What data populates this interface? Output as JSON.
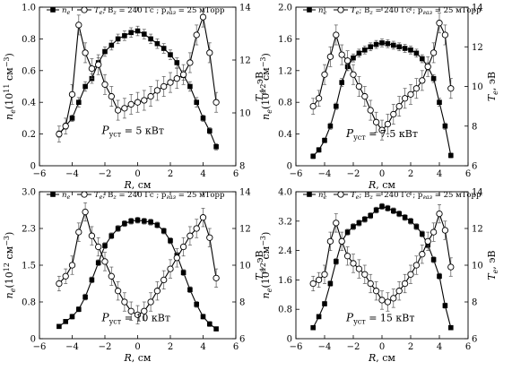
{
  "legend": {
    "series_ne": "n",
    "series_ne_sub": "e",
    "series_te": "T",
    "series_te_sub": "e",
    "conditions": "; B",
    "conditions_sub": "z",
    "conditions_rest": " = 240 Гс ; p",
    "pressure_sub": "газ",
    "pressure_rest": " = 25 мТорр"
  },
  "chart_data": [
    {
      "type": "line",
      "xlabel": "R, см",
      "ylabel_left": "n_e(10^11 см^-3)",
      "ylabel_right": "T_e, эВ",
      "xlim": [
        -6,
        6
      ],
      "ylim_left": [
        0,
        1.0
      ],
      "ylim_right": [
        6,
        14
      ],
      "xticks": [
        "−6",
        "−4",
        "−2",
        "0",
        "2",
        "4",
        "6"
      ],
      "yticks_left": [
        "0",
        "0.2",
        "0.4",
        "0.6",
        "0.8",
        "1.0"
      ],
      "yticks_right": [
        "8",
        "10",
        "12",
        "14"
      ],
      "power_label": "= 5 кВт",
      "x": [
        -4.8,
        -4.4,
        -4.0,
        -3.6,
        -3.2,
        -2.8,
        -2.4,
        -2.0,
        -1.6,
        -1.2,
        -0.8,
        -0.4,
        0.0,
        0.4,
        0.8,
        1.2,
        1.6,
        2.0,
        2.4,
        2.8,
        3.2,
        3.6,
        4.0,
        4.4,
        4.8
      ],
      "series": [
        {
          "name": "n_e",
          "axis": "left",
          "marker": "filled",
          "values": [
            0.2,
            0.25,
            0.3,
            0.4,
            0.5,
            0.55,
            0.65,
            0.72,
            0.76,
            0.8,
            0.82,
            0.84,
            0.85,
            0.83,
            0.8,
            0.77,
            0.74,
            0.7,
            0.65,
            0.57,
            0.5,
            0.4,
            0.3,
            0.22,
            0.12
          ],
          "errors": [
            0.02,
            0.02,
            0.02,
            0.03,
            0.03,
            0.03,
            0.03,
            0.03,
            0.03,
            0.03,
            0.03,
            0.03,
            0.03,
            0.03,
            0.03,
            0.03,
            0.03,
            0.03,
            0.03,
            0.03,
            0.03,
            0.03,
            0.02,
            0.02,
            0.02
          ]
        },
        {
          "name": "T_e",
          "axis": "right",
          "marker": "open",
          "values": [
            7.6,
            8.0,
            9.6,
            13.1,
            11.7,
            10.9,
            11.1,
            10.1,
            9.5,
            8.8,
            8.9,
            9.1,
            9.2,
            9.3,
            9.5,
            9.8,
            10.0,
            10.2,
            10.4,
            10.6,
            11.2,
            12.6,
            13.5,
            11.7,
            9.2
          ],
          "errors": [
            0.4,
            0.4,
            0.5,
            0.5,
            0.5,
            0.5,
            0.5,
            0.5,
            0.5,
            0.5,
            0.5,
            0.5,
            0.5,
            0.5,
            0.5,
            0.5,
            0.5,
            0.5,
            0.5,
            0.5,
            0.5,
            0.5,
            0.5,
            0.5,
            0.5
          ]
        }
      ]
    },
    {
      "type": "line",
      "xlabel": "R, см",
      "ylabel_left": "n_e(10^12 см^-3)",
      "ylabel_right": "T_e, эВ",
      "xlim": [
        -6,
        6
      ],
      "ylim_left": [
        0,
        2.0
      ],
      "ylim_right": [
        6,
        14
      ],
      "xticks": [
        "−6",
        "−4",
        "−2",
        "0",
        "2",
        "4",
        "6"
      ],
      "yticks_left": [
        "0",
        "0.4",
        "0.8",
        "1.2",
        "1.6",
        "2.0"
      ],
      "yticks_right": [
        "6",
        "8",
        "10",
        "12",
        "14"
      ],
      "power_label": "= 7.5 кВт",
      "x": [
        -4.8,
        -4.4,
        -4.0,
        -3.6,
        -3.2,
        -2.8,
        -2.4,
        -2.0,
        -1.6,
        -1.2,
        -0.8,
        -0.4,
        0.0,
        0.4,
        0.8,
        1.2,
        1.6,
        2.0,
        2.4,
        2.8,
        3.2,
        3.6,
        4.0,
        4.4,
        4.8
      ],
      "series": [
        {
          "name": "n_e",
          "axis": "left",
          "marker": "filled",
          "values": [
            0.12,
            0.2,
            0.32,
            0.5,
            0.75,
            1.05,
            1.25,
            1.36,
            1.42,
            1.46,
            1.5,
            1.53,
            1.55,
            1.54,
            1.52,
            1.5,
            1.48,
            1.46,
            1.42,
            1.35,
            1.25,
            1.1,
            0.8,
            0.5,
            0.13
          ],
          "errors": [
            0.03,
            0.03,
            0.03,
            0.04,
            0.04,
            0.05,
            0.05,
            0.05,
            0.05,
            0.05,
            0.05,
            0.05,
            0.05,
            0.05,
            0.05,
            0.05,
            0.05,
            0.05,
            0.05,
            0.05,
            0.05,
            0.05,
            0.05,
            0.04,
            0.03
          ]
        },
        {
          "name": "T_e",
          "axis": "right",
          "marker": "open",
          "values": [
            9.0,
            9.4,
            10.6,
            11.5,
            12.6,
            11.6,
            11.3,
            10.6,
            10.0,
            9.5,
            8.8,
            8.2,
            7.8,
            8.1,
            8.6,
            9.0,
            9.4,
            9.6,
            9.9,
            10.3,
            11.0,
            11.7,
            13.2,
            12.6,
            9.9
          ],
          "errors": [
            0.4,
            0.4,
            0.5,
            0.5,
            0.5,
            0.5,
            0.5,
            0.5,
            0.5,
            0.5,
            0.5,
            0.5,
            0.5,
            0.5,
            0.5,
            0.5,
            0.5,
            0.5,
            0.5,
            0.5,
            0.5,
            0.5,
            0.5,
            0.5,
            0.5
          ]
        }
      ]
    },
    {
      "type": "line",
      "xlabel": "R, см",
      "ylabel_left": "n_e(10^12 см^-3)",
      "ylabel_right": "T_e, эВ",
      "xlim": [
        -6,
        6
      ],
      "ylim_left": [
        0,
        3.0
      ],
      "ylim_right": [
        6,
        14
      ],
      "xticks": [
        "−6",
        "−4",
        "−2",
        "0",
        "2",
        "4",
        "6"
      ],
      "yticks_left": [
        "0",
        "0.8",
        "1.5",
        "2.3",
        "3.0"
      ],
      "yticks_right": [
        "6",
        "8",
        "10",
        "12",
        "14"
      ],
      "power_label": "= 10 кВт",
      "x": [
        -4.8,
        -4.4,
        -4.0,
        -3.6,
        -3.2,
        -2.8,
        -2.4,
        -2.0,
        -1.6,
        -1.2,
        -0.8,
        -0.4,
        0.0,
        0.4,
        0.8,
        1.2,
        1.6,
        2.0,
        2.4,
        2.8,
        3.2,
        3.6,
        4.0,
        4.4,
        4.8
      ],
      "series": [
        {
          "name": "n_e",
          "axis": "left",
          "marker": "filled",
          "values": [
            0.25,
            0.35,
            0.45,
            0.6,
            0.85,
            1.2,
            1.55,
            1.9,
            2.1,
            2.25,
            2.35,
            2.4,
            2.42,
            2.4,
            2.38,
            2.32,
            2.2,
            2.0,
            1.7,
            1.35,
            1.0,
            0.7,
            0.45,
            0.3,
            0.2
          ],
          "errors": [
            0.04,
            0.04,
            0.05,
            0.05,
            0.06,
            0.06,
            0.06,
            0.06,
            0.06,
            0.06,
            0.06,
            0.06,
            0.06,
            0.06,
            0.06,
            0.06,
            0.06,
            0.06,
            0.06,
            0.06,
            0.06,
            0.06,
            0.05,
            0.05,
            0.04
          ]
        },
        {
          "name": "T_e",
          "axis": "right",
          "marker": "open",
          "values": [
            9.0,
            9.4,
            10.0,
            11.8,
            12.9,
            11.6,
            11.0,
            10.2,
            9.4,
            8.6,
            8.0,
            7.5,
            7.3,
            7.5,
            8.0,
            8.6,
            9.2,
            9.8,
            10.4,
            11.0,
            11.6,
            12.0,
            12.6,
            11.5,
            9.3
          ],
          "errors": [
            0.4,
            0.4,
            0.5,
            0.5,
            0.5,
            0.5,
            0.5,
            0.5,
            0.5,
            0.5,
            0.5,
            0.5,
            0.5,
            0.5,
            0.5,
            0.5,
            0.5,
            0.5,
            0.5,
            0.5,
            0.5,
            0.5,
            0.5,
            0.5,
            0.5
          ]
        }
      ]
    },
    {
      "type": "line",
      "xlabel": "R, см",
      "ylabel_left": "n_e(10^12 см^-3)",
      "ylabel_right": "T_e, эВ",
      "xlim": [
        -6,
        6
      ],
      "ylim_left": [
        0,
        4.0
      ],
      "ylim_right": [
        6,
        14
      ],
      "xticks": [
        "−6",
        "−4",
        "−2",
        "0",
        "2",
        "4",
        "6"
      ],
      "yticks_left": [
        "0",
        "0.8",
        "1.6",
        "2.4",
        "3.2",
        "4.0"
      ],
      "yticks_right": [
        "6",
        "8",
        "10",
        "12",
        "14"
      ],
      "power_label": "= 15 кВт",
      "x": [
        -4.8,
        -4.4,
        -4.0,
        -3.6,
        -3.2,
        -2.8,
        -2.4,
        -2.0,
        -1.6,
        -1.2,
        -0.8,
        -0.4,
        0.0,
        0.4,
        0.8,
        1.2,
        1.6,
        2.0,
        2.4,
        2.8,
        3.2,
        3.6,
        4.0,
        4.4,
        4.8
      ],
      "series": [
        {
          "name": "n_e",
          "axis": "left",
          "marker": "filled",
          "values": [
            0.3,
            0.6,
            0.95,
            1.5,
            2.1,
            2.65,
            2.9,
            3.05,
            3.15,
            3.25,
            3.35,
            3.5,
            3.6,
            3.55,
            3.48,
            3.4,
            3.3,
            3.2,
            3.05,
            2.85,
            2.55,
            2.15,
            1.7,
            0.9,
            0.3
          ],
          "errors": [
            0.05,
            0.06,
            0.06,
            0.07,
            0.08,
            0.08,
            0.08,
            0.08,
            0.08,
            0.08,
            0.08,
            0.08,
            0.08,
            0.08,
            0.08,
            0.08,
            0.08,
            0.08,
            0.08,
            0.08,
            0.08,
            0.08,
            0.08,
            0.07,
            0.05
          ]
        },
        {
          "name": "T_e",
          "axis": "right",
          "marker": "open",
          "values": [
            9.0,
            9.2,
            9.5,
            11.3,
            12.3,
            11.3,
            10.5,
            10.1,
            9.8,
            9.5,
            9.0,
            8.6,
            8.1,
            8.0,
            8.2,
            8.6,
            9.0,
            9.5,
            10.0,
            10.6,
            11.3,
            11.8,
            12.8,
            11.9,
            9.9
          ],
          "errors": [
            0.4,
            0.4,
            0.5,
            0.5,
            0.5,
            0.5,
            0.5,
            0.5,
            0.5,
            0.5,
            0.5,
            0.5,
            0.5,
            0.5,
            0.5,
            0.5,
            0.5,
            0.5,
            0.5,
            0.5,
            0.5,
            0.5,
            0.5,
            0.5,
            0.5
          ]
        }
      ]
    }
  ]
}
